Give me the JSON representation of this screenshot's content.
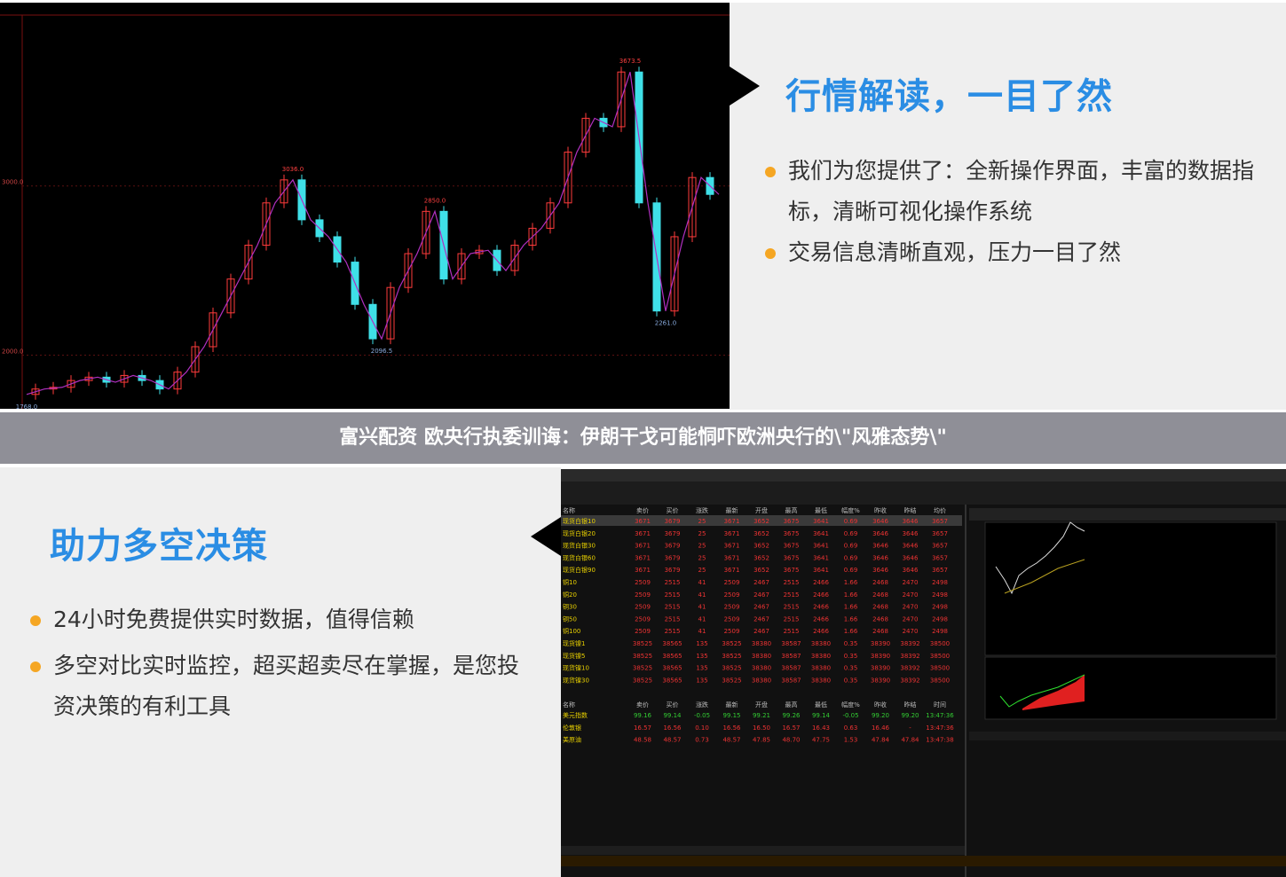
{
  "price_chart": {
    "ylim": [
      1683,
      4010
    ],
    "yticks": [
      {
        "value": 3000,
        "label": "3000.0"
      },
      {
        "value": 2000,
        "label": "2000.0"
      }
    ],
    "closes": [
      1768,
      1800,
      1810,
      1850,
      1870,
      1840,
      1880,
      1850,
      1800,
      1900,
      2050,
      2250,
      2450,
      2650,
      2900,
      3036,
      2800,
      2700,
      2550,
      2300,
      2096.5,
      2400,
      2600,
      2850,
      2450,
      2600,
      2620,
      2500,
      2650,
      2750,
      2900,
      3200,
      3400,
      3350,
      3673.5,
      2900,
      2261,
      2700,
      3050,
      2950
    ],
    "annotations": [
      {
        "value": 3673.5,
        "label": "3673.5"
      },
      {
        "value": 3036,
        "label": "3036.0"
      },
      {
        "value": 2850,
        "label": "2850.0"
      },
      {
        "value": 2096.5,
        "label": "2096.5"
      },
      {
        "value": 2261,
        "label": "2261.0"
      },
      {
        "value": 1768,
        "label": "1768.0"
      }
    ]
  },
  "section1": {
    "title": "行情解读，一目了然",
    "bullets": [
      "我们为您提供了：全新操作界面，丰富的数据指标，清晰可视化操作系统",
      "交易信息清晰直观，压力一目了然"
    ]
  },
  "banner": "富兴配资 欧央行执委训诲：伊朗干戈可能恫吓欧洲央行的\\\"风雅态势\\\"",
  "section2": {
    "title": "助力多空决策",
    "bullets": [
      "24小时免费提供实时数据，值得信赖",
      "多空对比实时监控，超买超卖尽在掌握，是您投资决策的有利工具"
    ]
  },
  "quote_table": {
    "headers": [
      "名称",
      "卖价",
      "买价",
      "涨跌",
      "最新",
      "开盘",
      "最高",
      "最低",
      "幅度%",
      "昨收",
      "昨结",
      "均价"
    ],
    "rows": [
      [
        "现货白银10",
        "3671",
        "3679",
        "25",
        "3671",
        "3652",
        "3675",
        "3641",
        "0.69",
        "3646",
        "3646",
        "3657"
      ],
      [
        "现货白银20",
        "3671",
        "3679",
        "25",
        "3671",
        "3652",
        "3675",
        "3641",
        "0.69",
        "3646",
        "3646",
        "3657"
      ],
      [
        "现货白银30",
        "3671",
        "3679",
        "25",
        "3671",
        "3652",
        "3675",
        "3641",
        "0.69",
        "3646",
        "3646",
        "3657"
      ],
      [
        "现货白银60",
        "3671",
        "3679",
        "25",
        "3671",
        "3652",
        "3675",
        "3641",
        "0.69",
        "3646",
        "3646",
        "3657"
      ],
      [
        "现货白银90",
        "3671",
        "3679",
        "25",
        "3671",
        "3652",
        "3675",
        "3641",
        "0.69",
        "3646",
        "3646",
        "3657"
      ],
      [
        "铜10",
        "2509",
        "2515",
        "41",
        "2509",
        "2467",
        "2515",
        "2466",
        "1.66",
        "2468",
        "2470",
        "2498"
      ],
      [
        "铜20",
        "2509",
        "2515",
        "41",
        "2509",
        "2467",
        "2515",
        "2466",
        "1.66",
        "2468",
        "2470",
        "2498"
      ],
      [
        "铜30",
        "2509",
        "2515",
        "41",
        "2509",
        "2467",
        "2515",
        "2466",
        "1.66",
        "2468",
        "2470",
        "2498"
      ],
      [
        "铜50",
        "2509",
        "2515",
        "41",
        "2509",
        "2467",
        "2515",
        "2466",
        "1.66",
        "2468",
        "2470",
        "2498"
      ],
      [
        "铜100",
        "2509",
        "2515",
        "41",
        "2509",
        "2467",
        "2515",
        "2466",
        "1.66",
        "2468",
        "2470",
        "2498"
      ],
      [
        "现货镍1",
        "38525",
        "38565",
        "135",
        "38525",
        "38380",
        "38587",
        "38380",
        "0.35",
        "38390",
        "38392",
        "38500"
      ],
      [
        "现货镍5",
        "38525",
        "38565",
        "135",
        "38525",
        "38380",
        "38587",
        "38380",
        "0.35",
        "38390",
        "38392",
        "38500"
      ],
      [
        "现货镍10",
        "38525",
        "38565",
        "135",
        "38525",
        "38380",
        "38587",
        "38380",
        "0.35",
        "38390",
        "38392",
        "38500"
      ],
      [
        "现货镍30",
        "38525",
        "38565",
        "135",
        "38525",
        "38380",
        "38587",
        "38380",
        "0.35",
        "38390",
        "38392",
        "38500"
      ]
    ]
  },
  "hot_table": {
    "headers": [
      "名称",
      "卖价",
      "买价",
      "涨跌",
      "最新",
      "开盘",
      "最高",
      "最低",
      "幅度%",
      "昨收",
      "昨结",
      "时间"
    ],
    "rows": [
      [
        "美元指数",
        "99.16",
        "99.14",
        "-0.05",
        "99.15",
        "99.21",
        "99.26",
        "99.14",
        "-0.05",
        "99.20",
        "99.20",
        "13:47:36"
      ],
      [
        "伦敦银",
        "16.57",
        "16.56",
        "0.10",
        "16.56",
        "16.50",
        "16.57",
        "16.43",
        "0.63",
        "16.46",
        "-",
        "13:47:36"
      ],
      [
        "美原油",
        "48.58",
        "48.57",
        "0.73",
        "48.57",
        "47.85",
        "48.70",
        "47.75",
        "1.53",
        "47.84",
        "47.84",
        "13:47:38"
      ]
    ]
  }
}
